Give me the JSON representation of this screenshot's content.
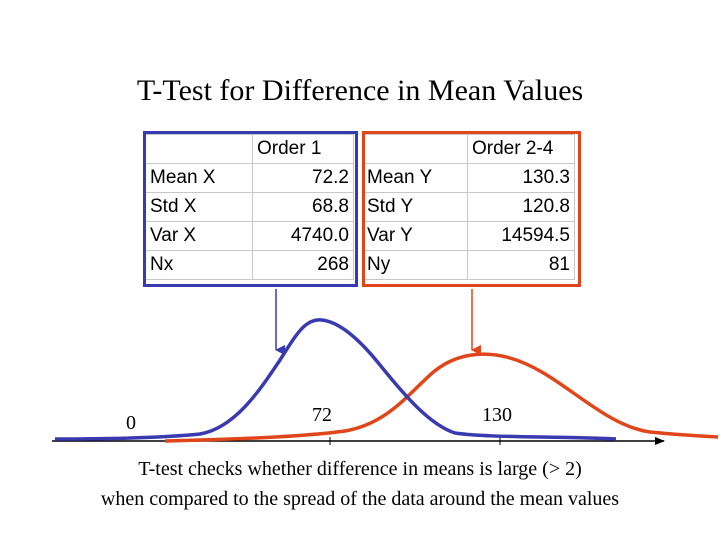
{
  "title": "T-Test for Difference in Mean Values",
  "order1": {
    "header": "Order 1",
    "rows": [
      {
        "label": "Mean X",
        "value": "72.2"
      },
      {
        "label": "Std X",
        "value": "68.8"
      },
      {
        "label": "Var X",
        "value": "4740.0"
      },
      {
        "label": "Nx",
        "value": "268"
      }
    ],
    "color": "#3a3ab0"
  },
  "order2": {
    "header": "Order 2-4",
    "rows": [
      {
        "label": "Mean Y",
        "value": "130.3"
      },
      {
        "label": "Std Y",
        "value": "120.8"
      },
      {
        "label": "Var Y",
        "value": "14594.5"
      },
      {
        "label": "Ny",
        "value": "81"
      }
    ],
    "color": "#e0461a"
  },
  "axis": {
    "label_zero": "0",
    "label_mean_x": "72",
    "label_mean_y": "130"
  },
  "caption": {
    "line1": "T-test checks whether difference in means is large (> 2)",
    "line2": "when compared to the spread of the data around the mean values"
  }
}
